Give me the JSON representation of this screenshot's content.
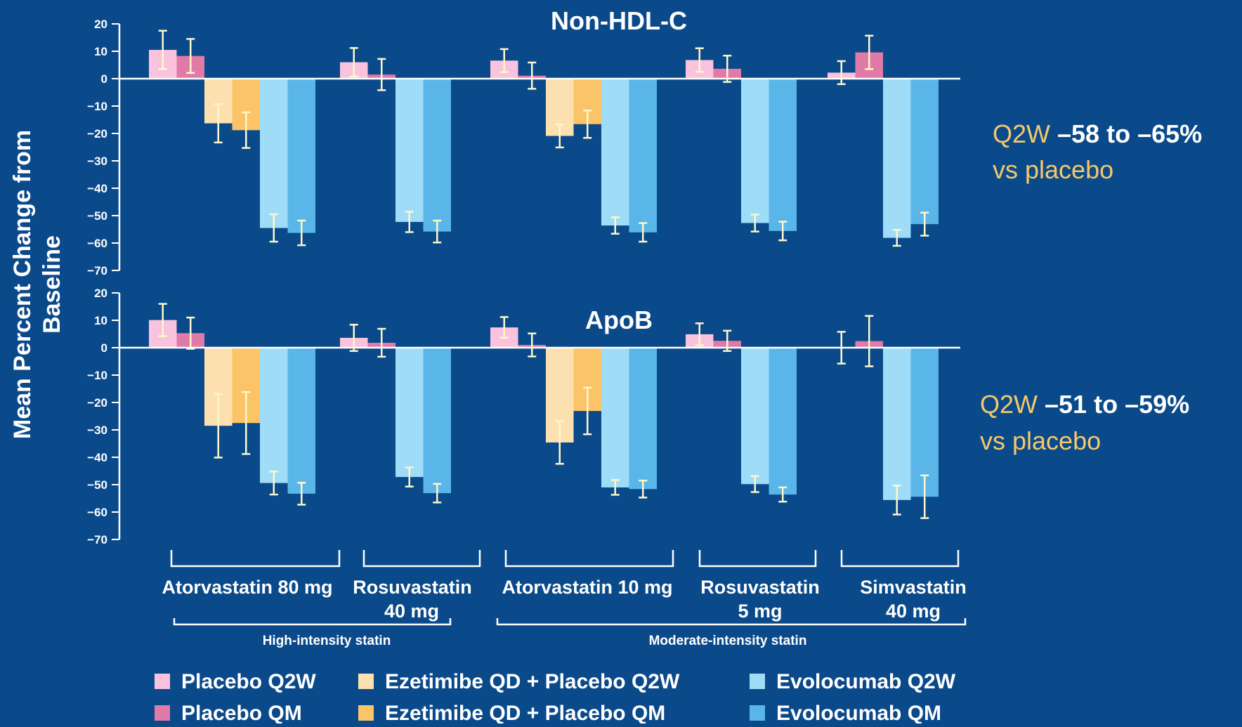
{
  "chart_data": {
    "type": "bar",
    "ylabel_line1": "Mean Percent Change from",
    "ylabel_line2": "Baseline",
    "yticks": [
      20,
      10,
      0,
      -10,
      -20,
      -30,
      -40,
      -50,
      -60,
      -70
    ],
    "ytick_labels": [
      "20",
      "10",
      "0",
      "−10",
      "−20",
      "−30",
      "−40",
      "−50",
      "−60",
      "−70"
    ],
    "ylim": [
      -70,
      20
    ],
    "series": [
      {
        "name": "Placebo Q2W",
        "color": "#f9c3dd"
      },
      {
        "name": "Placebo QM",
        "color": "#e07aa8"
      },
      {
        "name": "Ezetimibe QD + Placebo Q2W",
        "color": "#fde0b0"
      },
      {
        "name": "Ezetimibe QD + Placebo QM",
        "color": "#fbc468"
      },
      {
        "name": "Evolocumab Q2W",
        "color": "#9edcf8"
      },
      {
        "name": "Evolocumab QM",
        "color": "#5ab6e8"
      }
    ],
    "groups": [
      {
        "label_line1": "Atorvastatin 80 mg",
        "label_line2": ""
      },
      {
        "label_line1": "Rosuvastatin",
        "label_line2": "40 mg"
      },
      {
        "label_line1": "Atorvastatin 10 mg",
        "label_line2": ""
      },
      {
        "label_line1": "Rosuvastatin",
        "label_line2": "5 mg"
      },
      {
        "label_line1": "Simvastatin",
        "label_line2": "40 mg"
      }
    ],
    "intensity_labels": [
      "High-intensity statin",
      "Moderate-intensity statin"
    ],
    "panels": [
      {
        "title": "Non-HDL-C",
        "annotation": {
          "prefix": "Q2W",
          "range": "–58 to –65%",
          "suffix": "vs placebo"
        },
        "bars": [
          [
            {
              "s": 0,
              "v": 10.5,
              "e": 7
            },
            {
              "s": 1,
              "v": 8.3,
              "e": 6.2
            },
            {
              "s": 2,
              "v": -16.3,
              "e": 7
            },
            {
              "s": 3,
              "v": -18.8,
              "e": 6.5
            },
            {
              "s": 4,
              "v": -54.5,
              "e": 5
            },
            {
              "s": 5,
              "v": -56.3,
              "e": 4.5
            }
          ],
          [
            {
              "s": 0,
              "v": 6,
              "e": 5.2
            },
            {
              "s": 1,
              "v": 1.5,
              "e": 5.7
            },
            {
              "s": 4,
              "v": -52.3,
              "e": 3.7
            },
            {
              "s": 5,
              "v": -55.8,
              "e": 4
            }
          ],
          [
            {
              "s": 0,
              "v": 6.6,
              "e": 4.2
            },
            {
              "s": 1,
              "v": 1.1,
              "e": 4.8
            },
            {
              "s": 2,
              "v": -20.9,
              "e": 4.2
            },
            {
              "s": 3,
              "v": -16.6,
              "e": 5
            },
            {
              "s": 4,
              "v": -53.6,
              "e": 3
            },
            {
              "s": 5,
              "v": -56.1,
              "e": 3.4
            }
          ],
          [
            {
              "s": 0,
              "v": 6.8,
              "e": 4.3
            },
            {
              "s": 1,
              "v": 3.6,
              "e": 4.8
            },
            {
              "s": 4,
              "v": -52.7,
              "e": 3.1
            },
            {
              "s": 5,
              "v": -55.6,
              "e": 3.4
            }
          ],
          [
            {
              "s": 0,
              "v": 2.2,
              "e": 4.2
            },
            {
              "s": 1,
              "v": 9.6,
              "e": 6.1
            },
            {
              "s": 4,
              "v": -58.1,
              "e": 2.9
            },
            {
              "s": 5,
              "v": -53.1,
              "e": 4.2
            }
          ]
        ]
      },
      {
        "title": "ApoB",
        "annotation": {
          "prefix": "Q2W",
          "range": "–51 to –59%",
          "suffix": "vs placebo"
        },
        "bars": [
          [
            {
              "s": 0,
              "v": 10.1,
              "e": 5.9
            },
            {
              "s": 1,
              "v": 5.3,
              "e": 5.7
            },
            {
              "s": 2,
              "v": -28.5,
              "e": 11.6
            },
            {
              "s": 3,
              "v": -27.5,
              "e": 11.3
            },
            {
              "s": 4,
              "v": -49.4,
              "e": 4.2
            },
            {
              "s": 5,
              "v": -53.3,
              "e": 4
            }
          ],
          [
            {
              "s": 0,
              "v": 3.6,
              "e": 4.8
            },
            {
              "s": 1,
              "v": 1.8,
              "e": 5.1
            },
            {
              "s": 4,
              "v": -47.2,
              "e": 3.5
            },
            {
              "s": 5,
              "v": -53.1,
              "e": 3.4
            }
          ],
          [
            {
              "s": 0,
              "v": 7.4,
              "e": 3.8
            },
            {
              "s": 1,
              "v": 1,
              "e": 4.2
            },
            {
              "s": 2,
              "v": -34.6,
              "e": 7.8
            },
            {
              "s": 3,
              "v": -23.1,
              "e": 8.5
            },
            {
              "s": 4,
              "v": -51,
              "e": 2.7
            },
            {
              "s": 5,
              "v": -51.6,
              "e": 3.1
            }
          ],
          [
            {
              "s": 0,
              "v": 4.9,
              "e": 4
            },
            {
              "s": 1,
              "v": 2.5,
              "e": 3.7
            },
            {
              "s": 4,
              "v": -49.8,
              "e": 2.9
            },
            {
              "s": 5,
              "v": -53.6,
              "e": 2.6
            }
          ],
          [
            {
              "s": 0,
              "v": 0,
              "e": 5.8
            },
            {
              "s": 1,
              "v": 2.4,
              "e": 9.2
            },
            {
              "s": 4,
              "v": -55.6,
              "e": 5.3
            },
            {
              "s": 5,
              "v": -54.4,
              "e": 7.8
            }
          ]
        ]
      }
    ]
  }
}
